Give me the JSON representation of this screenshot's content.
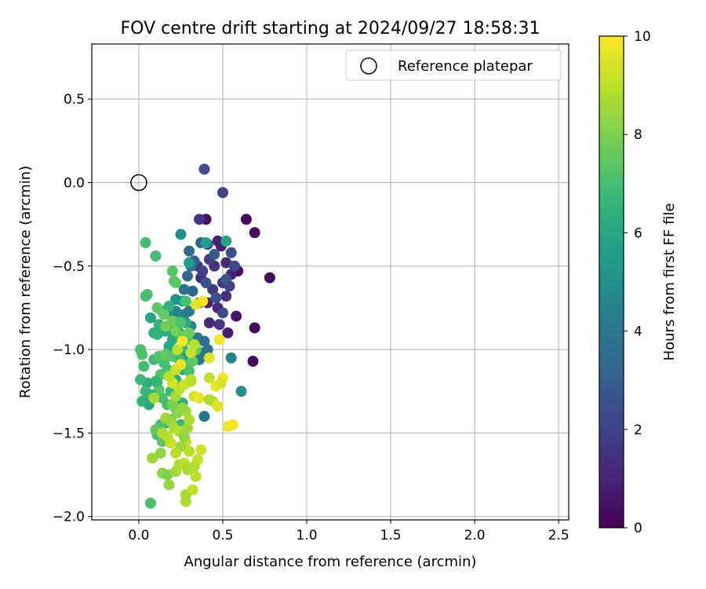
{
  "chart_data": {
    "type": "scatter",
    "title": "FOV centre drift starting at 2024/09/27 18:58:31",
    "xlabel": "Angular distance from reference (arcmin)",
    "ylabel": "Rotation from reference (arcmin)",
    "xlim": [
      -0.28,
      2.56
    ],
    "ylim": [
      -2.02,
      0.83
    ],
    "xticks": [
      0.0,
      0.5,
      1.0,
      1.5,
      2.0,
      2.5
    ],
    "xtick_labels": [
      "0.0",
      "0.5",
      "1.0",
      "1.5",
      "2.0",
      "2.5"
    ],
    "yticks": [
      -2.0,
      -1.5,
      -1.0,
      -0.5,
      0.0,
      0.5
    ],
    "ytick_labels": [
      "−2.0",
      "−1.5",
      "−1.0",
      "−0.5",
      "0.0",
      "0.5"
    ],
    "grid": true,
    "legend": {
      "position": "top-right",
      "entries": [
        "Reference platepar"
      ]
    },
    "reference_point": {
      "name": "Reference platepar",
      "x": 0.0,
      "y": 0.0,
      "marker": "open-circle"
    },
    "colorbar": {
      "label": "Hours from first FF file",
      "colormap": "viridis",
      "range": [
        0,
        10
      ],
      "ticks": [
        0,
        2,
        4,
        6,
        8,
        10
      ],
      "tick_labels": [
        "0",
        "2",
        "4",
        "6",
        "8",
        "10"
      ]
    },
    "colormap_stops": [
      "#440154",
      "#482878",
      "#3e4a89",
      "#31688e",
      "#26828e",
      "#1f9e89",
      "#35b779",
      "#6ece58",
      "#b5de2b",
      "#fde725"
    ],
    "points": [
      [
        0.69,
        -0.3,
        0.3
      ],
      [
        0.64,
        -0.22,
        0.2
      ],
      [
        0.78,
        -0.57,
        0.3
      ],
      [
        0.69,
        -0.87,
        0.2
      ],
      [
        0.68,
        -1.07,
        0.3
      ],
      [
        0.59,
        -0.53,
        0.4
      ],
      [
        0.58,
        -0.8,
        0.6
      ],
      [
        0.4,
        -0.22,
        0.5
      ],
      [
        0.47,
        -0.35,
        1.0
      ],
      [
        0.49,
        -0.38,
        0.9
      ],
      [
        0.52,
        -0.48,
        1.2
      ],
      [
        0.55,
        -0.55,
        1.0
      ],
      [
        0.5,
        -0.6,
        1.5
      ],
      [
        0.45,
        -0.5,
        1.4
      ],
      [
        0.42,
        -0.46,
        1.8
      ],
      [
        0.37,
        -0.57,
        1.3
      ],
      [
        0.35,
        -0.5,
        1.6
      ],
      [
        0.38,
        -0.53,
        2.0
      ],
      [
        0.44,
        -0.64,
        1.7
      ],
      [
        0.41,
        -0.72,
        1.0
      ],
      [
        0.47,
        -0.75,
        1.1
      ],
      [
        0.52,
        -0.68,
        1.3
      ],
      [
        0.53,
        -0.9,
        0.8
      ],
      [
        0.48,
        -0.85,
        1.5
      ],
      [
        0.42,
        -0.84,
        1.2
      ],
      [
        0.54,
        -0.62,
        1.9
      ],
      [
        0.57,
        -0.5,
        2.2
      ],
      [
        0.55,
        -0.42,
        2.4
      ],
      [
        0.52,
        -0.58,
        2.7
      ],
      [
        0.5,
        -0.78,
        2.3
      ],
      [
        0.46,
        -0.69,
        2.6
      ],
      [
        0.4,
        -0.6,
        2.5
      ],
      [
        0.39,
        0.08,
        2.4
      ],
      [
        0.5,
        -0.06,
        2.0
      ],
      [
        0.36,
        -0.22,
        1.6
      ],
      [
        0.45,
        -0.43,
        2.9
      ],
      [
        0.41,
        -0.37,
        2.7
      ],
      [
        0.37,
        -0.36,
        3.1
      ],
      [
        0.33,
        -0.47,
        3.0
      ],
      [
        0.3,
        -0.41,
        3.4
      ],
      [
        0.29,
        -0.56,
        3.3
      ],
      [
        0.31,
        -0.5,
        3.6
      ],
      [
        0.27,
        -0.64,
        3.8
      ],
      [
        0.32,
        -0.65,
        3.2
      ],
      [
        0.36,
        -0.72,
        3.9
      ],
      [
        0.3,
        -0.77,
        4.1
      ],
      [
        0.27,
        -0.79,
        4.3
      ],
      [
        0.24,
        -0.82,
        4.6
      ],
      [
        0.22,
        -0.77,
        4.5
      ],
      [
        0.2,
        -0.88,
        4.8
      ],
      [
        0.18,
        -0.79,
        5.0
      ],
      [
        0.22,
        -0.7,
        5.1
      ],
      [
        0.26,
        -0.71,
        5.2
      ],
      [
        0.25,
        -0.31,
        5.0
      ],
      [
        0.3,
        -0.48,
        5.4
      ],
      [
        0.24,
        -0.9,
        5.5
      ],
      [
        0.28,
        -0.92,
        4.9
      ],
      [
        0.31,
        -0.86,
        4.4
      ],
      [
        0.35,
        -0.93,
        4.2
      ],
      [
        0.39,
        -0.95,
        3.6
      ],
      [
        0.41,
        -1.0,
        3.7
      ],
      [
        0.37,
        -1.02,
        4.0
      ],
      [
        0.29,
        -1.06,
        4.2
      ],
      [
        0.24,
        -1.04,
        5.6
      ],
      [
        0.21,
        -1.01,
        5.8
      ],
      [
        0.18,
        -0.98,
        6.0
      ],
      [
        0.2,
        -0.94,
        6.1
      ],
      [
        0.16,
        -0.89,
        6.3
      ],
      [
        0.12,
        -0.85,
        6.5
      ],
      [
        0.14,
        -0.77,
        6.2
      ],
      [
        0.18,
        -0.74,
        6.4
      ],
      [
        0.24,
        -0.83,
        6.1
      ],
      [
        0.07,
        -0.81,
        5.9
      ],
      [
        0.09,
        -0.9,
        6.3
      ],
      [
        0.11,
        -0.91,
        6.6
      ],
      [
        0.52,
        -0.35,
        5.8
      ],
      [
        0.4,
        -0.36,
        5.6
      ],
      [
        0.28,
        -0.84,
        6.0
      ],
      [
        0.36,
        -1.06,
        4.0
      ],
      [
        0.55,
        -1.05,
        4.5
      ],
      [
        0.61,
        -1.25,
        5.0
      ],
      [
        0.39,
        -1.4,
        4.0
      ],
      [
        0.28,
        -1.03,
        5.5
      ],
      [
        0.26,
        -1.12,
        5.9
      ],
      [
        0.22,
        -1.18,
        6.2
      ],
      [
        0.19,
        -1.15,
        6.6
      ],
      [
        0.17,
        -1.12,
        6.9
      ],
      [
        0.15,
        -1.08,
        7.0
      ],
      [
        0.13,
        -1.15,
        7.2
      ],
      [
        0.11,
        -1.2,
        6.9
      ],
      [
        0.09,
        -1.06,
        6.8
      ],
      [
        0.12,
        -1.04,
        7.2
      ],
      [
        0.16,
        -1.03,
        7.5
      ],
      [
        0.2,
        -1.04,
        7.3
      ],
      [
        0.24,
        -1.06,
        7.0
      ],
      [
        0.27,
        -1.09,
        6.9
      ],
      [
        0.3,
        -1.13,
        7.1
      ],
      [
        0.32,
        -1.07,
        7.4
      ],
      [
        0.34,
        -1.0,
        7.6
      ],
      [
        0.29,
        -0.94,
        7.1
      ],
      [
        0.26,
        -0.99,
        6.8
      ],
      [
        0.22,
        -1.27,
        6.4
      ],
      [
        0.19,
        -1.25,
        6.7
      ],
      [
        0.17,
        -1.33,
        6.9
      ],
      [
        0.14,
        -1.29,
        7.0
      ],
      [
        0.12,
        -1.24,
        7.3
      ],
      [
        0.1,
        -1.19,
        6.6
      ],
      [
        0.05,
        -1.2,
        6.2
      ],
      [
        0.06,
        -1.33,
        6.0
      ],
      [
        0.02,
        -1.31,
        6.4
      ],
      [
        0.01,
        -1.18,
        6.7
      ],
      [
        0.03,
        -1.1,
        6.9
      ],
      [
        0.02,
        -1.03,
        7.2
      ],
      [
        0.01,
        -1.0,
        7.1
      ],
      [
        0.04,
        -1.25,
        6.8
      ],
      [
        0.07,
        -1.27,
        6.6
      ],
      [
        0.26,
        -1.32,
        6.3
      ],
      [
        0.25,
        -1.45,
        6.6
      ],
      [
        0.22,
        -1.35,
        6.8
      ],
      [
        0.19,
        -1.42,
        7.0
      ],
      [
        0.16,
        -1.44,
        6.5
      ],
      [
        0.13,
        -1.45,
        7.1
      ],
      [
        0.11,
        -1.51,
        6.9
      ],
      [
        0.14,
        -1.55,
        7.4
      ],
      [
        0.1,
        -1.48,
        7.5
      ],
      [
        0.04,
        -0.36,
        7.0
      ],
      [
        0.1,
        -0.44,
        6.9
      ],
      [
        0.04,
        -0.68,
        7.2
      ],
      [
        0.05,
        -0.67,
        7.0
      ],
      [
        0.2,
        -0.53,
        7.3
      ],
      [
        0.21,
        -0.59,
        7.5
      ],
      [
        0.11,
        -0.75,
        7.4
      ],
      [
        0.15,
        -0.79,
        7.6
      ],
      [
        0.16,
        -0.86,
        7.8
      ],
      [
        0.2,
        -0.83,
        7.7
      ],
      [
        0.22,
        -0.89,
        7.9
      ],
      [
        0.26,
        -0.92,
        7.6
      ],
      [
        0.3,
        -0.9,
        7.8
      ],
      [
        0.22,
        -0.6,
        7.4
      ],
      [
        0.28,
        -0.71,
        7.0
      ],
      [
        0.25,
        -0.84,
        7.2
      ],
      [
        0.07,
        -1.92,
        7.1
      ],
      [
        0.08,
        -1.65,
        8.5
      ],
      [
        0.13,
        -1.62,
        8.3
      ],
      [
        0.14,
        -1.74,
        8.2
      ],
      [
        0.17,
        -1.75,
        8.0
      ],
      [
        0.18,
        -1.81,
        8.4
      ],
      [
        0.22,
        -1.73,
        8.6
      ],
      [
        0.24,
        -1.69,
        8.8
      ],
      [
        0.27,
        -1.68,
        9.0
      ],
      [
        0.29,
        -1.72,
        8.7
      ],
      [
        0.3,
        -1.61,
        8.9
      ],
      [
        0.28,
        -1.55,
        9.1
      ],
      [
        0.25,
        -1.58,
        8.5
      ],
      [
        0.22,
        -1.62,
        8.9
      ],
      [
        0.19,
        -1.56,
        9.2
      ],
      [
        0.17,
        -1.52,
        9.0
      ],
      [
        0.14,
        -1.5,
        8.8
      ],
      [
        0.16,
        -1.41,
        8.6
      ],
      [
        0.19,
        -1.43,
        8.4
      ],
      [
        0.21,
        -1.47,
        8.7
      ],
      [
        0.24,
        -1.49,
        8.9
      ],
      [
        0.27,
        -1.52,
        8.3
      ],
      [
        0.29,
        -1.47,
        8.5
      ],
      [
        0.3,
        -1.42,
        8.8
      ],
      [
        0.28,
        -1.37,
        8.6
      ],
      [
        0.26,
        -1.35,
        8.4
      ],
      [
        0.23,
        -1.38,
        8.2
      ],
      [
        0.2,
        -1.33,
        8.0
      ],
      [
        0.22,
        -1.28,
        8.6
      ],
      [
        0.24,
        -1.24,
        8.9
      ],
      [
        0.27,
        -1.21,
        9.2
      ],
      [
        0.31,
        -1.19,
        9.0
      ],
      [
        0.33,
        -1.28,
        9.4
      ],
      [
        0.36,
        -1.29,
        9.7
      ],
      [
        0.37,
        -1.6,
        9.3
      ],
      [
        0.35,
        -1.66,
        9.1
      ],
      [
        0.34,
        -1.76,
        9.0
      ],
      [
        0.33,
        -1.7,
        8.8
      ],
      [
        0.28,
        -1.87,
        8.6
      ],
      [
        0.32,
        -1.84,
        9.1
      ],
      [
        0.28,
        -1.91,
        8.7
      ],
      [
        0.2,
        -1.2,
        9.4
      ],
      [
        0.22,
        -1.12,
        9.2
      ],
      [
        0.25,
        -1.09,
        9.6
      ],
      [
        0.23,
        -1.0,
        9.0
      ],
      [
        0.26,
        -0.95,
        9.8
      ],
      [
        0.31,
        -1.02,
        9.1
      ],
      [
        0.33,
        -0.97,
        8.9
      ],
      [
        0.42,
        -1.05,
        9.5
      ],
      [
        0.42,
        -1.17,
        9.1
      ],
      [
        0.44,
        -1.31,
        9.3
      ],
      [
        0.47,
        -1.34,
        9.5
      ],
      [
        0.42,
        -1.3,
        8.8
      ],
      [
        0.46,
        -1.22,
        9.7
      ],
      [
        0.5,
        -1.17,
        9.9
      ],
      [
        0.53,
        -1.46,
        9.8
      ],
      [
        0.56,
        -1.45,
        9.9
      ],
      [
        0.49,
        -1.2,
        9.4
      ],
      [
        0.48,
        -0.94,
        9.9
      ],
      [
        0.38,
        -0.71,
        9.9
      ],
      [
        0.34,
        -0.73,
        9.6
      ],
      [
        0.31,
        -1.18,
        9.0
      ],
      [
        0.18,
        -1.16,
        8.9
      ],
      [
        0.09,
        -1.29,
        8.7
      ]
    ]
  }
}
